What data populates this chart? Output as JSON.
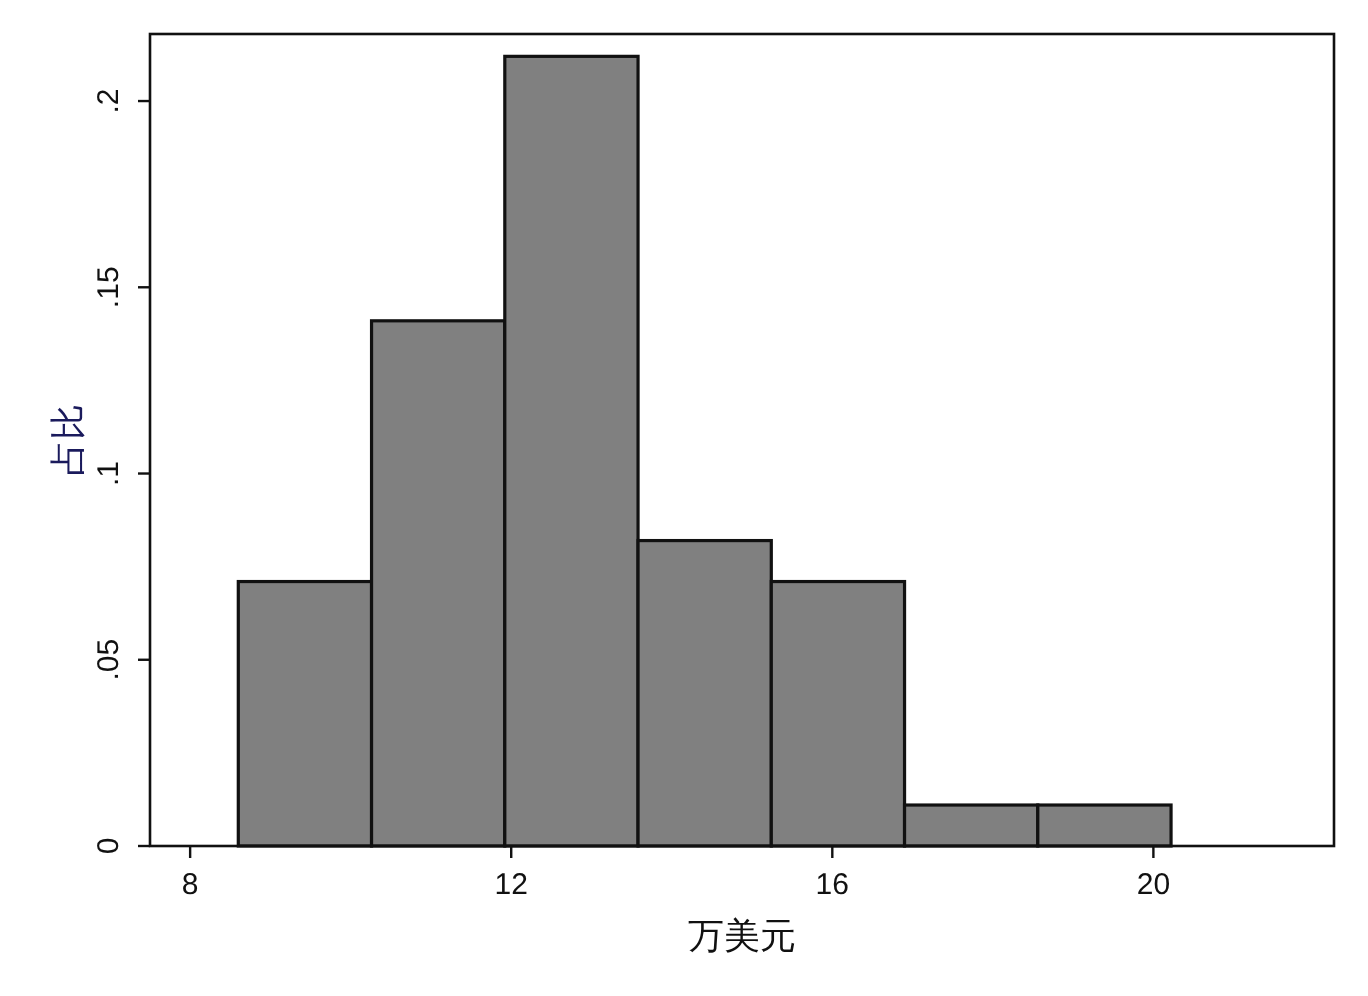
{
  "chart_data": {
    "type": "histogram",
    "bins": [
      8.6,
      10.26,
      11.92,
      13.58,
      15.24,
      16.9,
      18.56,
      20.22
    ],
    "values": [
      0.071,
      0.141,
      0.212,
      0.082,
      0.071,
      0.011,
      0.011
    ],
    "color": "#808080",
    "xlabel": "万美元",
    "ylabel": "占比",
    "xlim": [
      7.5,
      22.25
    ],
    "ylim": [
      0,
      0.218
    ],
    "xticks": [
      8,
      12,
      16,
      20
    ],
    "yticks": [
      0,
      {
        "value": 0.05,
        "label": ".05"
      },
      {
        "value": 0.1,
        "label": ".1"
      },
      {
        "value": 0.15,
        "label": ".15"
      },
      {
        "value": 0.2,
        "label": ".2"
      }
    ]
  }
}
